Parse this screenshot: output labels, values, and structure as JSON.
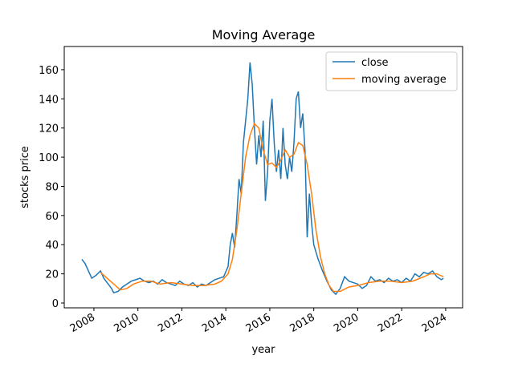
{
  "chart_data": {
    "type": "line",
    "title": "Moving Average",
    "xlabel": "year",
    "ylabel": "stocks price",
    "legend": "upper right",
    "xlim": [
      2006.65,
      2024.77
    ],
    "xticks": [
      2008,
      2010,
      2012,
      2014,
      2016,
      2018,
      2020,
      2022,
      2024
    ],
    "ylim": [
      -3.3,
      175.9
    ],
    "yticks": [
      0,
      20,
      40,
      60,
      80,
      100,
      120,
      140,
      160
    ],
    "series": [
      {
        "name": "close",
        "color": "#1f77b4",
        "x": [
          2007.45,
          2007.6,
          2007.75,
          2007.9,
          2008.1,
          2008.3,
          2008.45,
          2008.6,
          2008.8,
          2008.9,
          2009.1,
          2009.3,
          2009.5,
          2009.7,
          2009.9,
          2010.1,
          2010.3,
          2010.5,
          2010.7,
          2010.9,
          2011.1,
          2011.3,
          2011.5,
          2011.7,
          2011.9,
          2012.1,
          2012.3,
          2012.5,
          2012.7,
          2012.9,
          2013.1,
          2013.3,
          2013.5,
          2013.7,
          2013.9,
          2014.1,
          2014.2,
          2014.3,
          2014.4,
          2014.5,
          2014.6,
          2014.7,
          2014.8,
          2014.9,
          2015.0,
          2015.1,
          2015.2,
          2015.3,
          2015.4,
          2015.5,
          2015.6,
          2015.7,
          2015.8,
          2015.9,
          2016.0,
          2016.1,
          2016.2,
          2016.3,
          2016.4,
          2016.5,
          2016.6,
          2016.7,
          2016.8,
          2016.9,
          2017.0,
          2017.1,
          2017.2,
          2017.3,
          2017.4,
          2017.5,
          2017.6,
          2017.7,
          2017.8,
          2017.9,
          2018.0,
          2018.2,
          2018.4,
          2018.6,
          2018.8,
          2019.0,
          2019.2,
          2019.4,
          2019.6,
          2019.8,
          2020.0,
          2020.2,
          2020.4,
          2020.6,
          2020.8,
          2021.0,
          2021.2,
          2021.4,
          2021.6,
          2021.8,
          2022.0,
          2022.2,
          2022.4,
          2022.6,
          2022.8,
          2023.0,
          2023.2,
          2023.4,
          2023.6,
          2023.8,
          2023.9
        ],
        "values": [
          30,
          27,
          22,
          17,
          19,
          22,
          17,
          14,
          10,
          7,
          8,
          11,
          13,
          15,
          16,
          17,
          15,
          14,
          15,
          13,
          16,
          14,
          13,
          12,
          15,
          13,
          12,
          14,
          11,
          13,
          12,
          14,
          16,
          17,
          18,
          25,
          40,
          48,
          38,
          60,
          85,
          75,
          110,
          125,
          140,
          165,
          150,
          120,
          95,
          115,
          100,
          125,
          70,
          90,
          125,
          140,
          110,
          90,
          105,
          85,
          120,
          95,
          85,
          100,
          90,
          110,
          140,
          145,
          120,
          130,
          105,
          45,
          75,
          55,
          40,
          30,
          22,
          15,
          9,
          6,
          10,
          18,
          15,
          14,
          13,
          10,
          12,
          18,
          15,
          16,
          14,
          17,
          15,
          16,
          14,
          17,
          15,
          20,
          18,
          21,
          20,
          22,
          18,
          16,
          17
        ]
      },
      {
        "name": "moving average",
        "color": "#ff7f0e",
        "x": [
          2008.3,
          2008.6,
          2008.9,
          2009.2,
          2009.5,
          2009.8,
          2010.2,
          2010.6,
          2011,
          2011.5,
          2012,
          2012.5,
          2013,
          2013.5,
          2013.8,
          2014.1,
          2014.3,
          2014.5,
          2014.7,
          2014.9,
          2015.1,
          2015.3,
          2015.5,
          2015.7,
          2015.9,
          2016.1,
          2016.3,
          2016.5,
          2016.7,
          2016.9,
          2017.1,
          2017.3,
          2017.5,
          2017.7,
          2017.9,
          2018.1,
          2018.3,
          2018.5,
          2018.7,
          2018.9,
          2019.2,
          2019.6,
          2020,
          2020.5,
          2021,
          2021.5,
          2022,
          2022.5,
          2023,
          2023.3,
          2023.6,
          2023.9
        ],
        "values": [
          21,
          17,
          13,
          9,
          10,
          13,
          15,
          15,
          13,
          14,
          13,
          12,
          12,
          13,
          15,
          20,
          30,
          50,
          75,
          100,
          115,
          123,
          120,
          105,
          95,
          96,
          93,
          98,
          105,
          100,
          102,
          110,
          108,
          95,
          75,
          50,
          32,
          20,
          12,
          8,
          8,
          11,
          12,
          14,
          15,
          15,
          14,
          15,
          18,
          20,
          20,
          18
        ]
      }
    ]
  }
}
